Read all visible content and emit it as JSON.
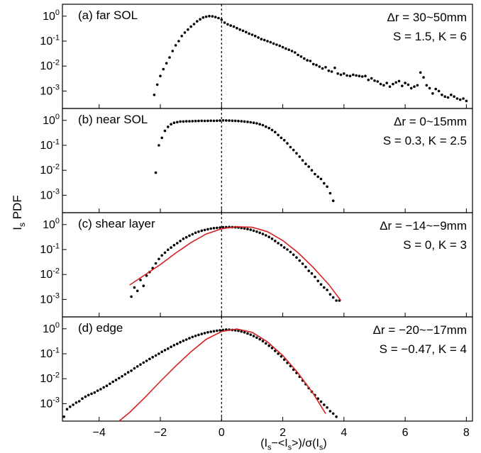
{
  "figure": {
    "xlabel": "(I_s−<I_s>)/σ(I_s)",
    "ylabel": "I_s PDF"
  },
  "chart_data": {
    "type": "scatter",
    "x_axis": {
      "range": [
        -5.2,
        8.2
      ],
      "ticks": [
        -4,
        -2,
        0,
        2,
        4,
        6,
        8
      ],
      "tick_labels": [
        "−4",
        "−2",
        "0",
        "2",
        "4",
        "6",
        "8"
      ],
      "label": "(I_s−<I_s>)/σ(I_s)"
    },
    "y_axis": {
      "scale": "log",
      "range": [
        0.0002,
        3
      ],
      "ticks": [
        1,
        0.1,
        0.01,
        0.001
      ],
      "tick_labels": [
        "10^0",
        "10^-1",
        "10^-2",
        "10^-3"
      ],
      "label": "I_s PDF"
    },
    "reference_line": {
      "x": 0,
      "style": "dashed"
    },
    "panels": [
      {
        "label": "(a) far SOL",
        "annotation_lines": [
          "Δr = 30~50mm",
          "S = 1.5, K = 6"
        ],
        "series": [
          {
            "style": "points",
            "color": "#000000",
            "x": [
              -2.2,
              -2.1,
              -2.0,
              -1.9,
              -1.8,
              -1.7,
              -1.6,
              -1.5,
              -1.4,
              -1.3,
              -1.2,
              -1.1,
              -1.0,
              -0.9,
              -0.8,
              -0.7,
              -0.6,
              -0.5,
              -0.4,
              -0.3,
              -0.2,
              -0.1,
              0.0,
              0.1,
              0.2,
              0.3,
              0.4,
              0.5,
              0.6,
              0.7,
              0.8,
              0.9,
              1.0,
              1.1,
              1.2,
              1.3,
              1.4,
              1.5,
              1.6,
              1.7,
              1.8,
              1.9,
              2.0,
              2.1,
              2.2,
              2.3,
              2.4,
              2.5,
              2.6,
              2.7,
              2.8,
              2.9,
              3.0,
              3.1,
              3.2,
              3.3,
              3.4,
              3.5,
              3.6,
              3.7,
              3.8,
              3.9,
              4.0,
              4.1,
              4.2,
              4.3,
              4.4,
              4.5,
              4.6,
              4.7,
              4.8,
              4.9,
              5.0,
              5.1,
              5.2,
              5.3,
              5.4,
              5.5,
              5.6,
              5.7,
              5.8,
              5.9,
              6.0,
              6.1,
              6.2,
              6.3,
              6.4,
              6.5,
              6.6,
              6.7,
              6.8,
              6.9,
              7.0,
              7.1,
              7.2,
              7.3,
              7.4,
              7.5,
              7.6,
              7.7,
              7.8,
              7.9,
              8.0
            ],
            "y": [
              0.0007,
              0.0018,
              0.004,
              0.0075,
              0.013,
              0.022,
              0.04,
              0.068,
              0.1,
              0.16,
              0.22,
              0.29,
              0.38,
              0.48,
              0.62,
              0.75,
              0.88,
              0.95,
              1.0,
              0.98,
              0.92,
              0.84,
              0.72,
              0.55,
              0.47,
              0.42,
              0.38,
              0.33,
              0.29,
              0.26,
              0.23,
              0.2,
              0.18,
              0.16,
              0.14,
              0.12,
              0.11,
              0.1,
              0.09,
              0.08,
              0.072,
              0.065,
              0.057,
              0.05,
              0.045,
              0.04,
              0.035,
              0.028,
              0.024,
              0.02,
              0.017,
              0.016,
              0.012,
              0.011,
              0.0095,
              0.008,
              0.009,
              0.0065,
              0.006,
              0.0085,
              0.005,
              0.0045,
              0.005,
              0.0042,
              0.004,
              0.0045,
              0.0042,
              0.004,
              0.0038,
              0.004,
              0.0028,
              0.0032,
              0.0026,
              0.0024,
              0.0019,
              0.0017,
              0.0021,
              0.0015,
              0.0019,
              0.0022,
              0.0025,
              0.0016,
              0.0021,
              0.0018,
              0.0013,
              0.0015,
              0.0017,
              0.0055,
              0.0035,
              0.0017,
              0.0013,
              0.0008,
              0.0012,
              0.001,
              0.0007,
              0.0006,
              0.00055,
              0.0007,
              0.0006,
              0.0005,
              0.00045,
              0.0005,
              0.0004
            ]
          }
        ]
      },
      {
        "label": "(b) near SOL",
        "annotation_lines": [
          "Δr = 0~15mm",
          "S = 0.3, K = 2.5"
        ],
        "series": [
          {
            "style": "points",
            "color": "#000000",
            "x": [
              -2.15,
              -2.05,
              -1.95,
              -1.85,
              -1.75,
              -1.65,
              -1.55,
              -1.45,
              -1.35,
              -1.25,
              -1.15,
              -1.05,
              -0.95,
              -0.85,
              -0.75,
              -0.65,
              -0.55,
              -0.45,
              -0.35,
              -0.25,
              -0.15,
              -0.05,
              0.05,
              0.15,
              0.25,
              0.35,
              0.45,
              0.55,
              0.65,
              0.75,
              0.85,
              0.95,
              1.05,
              1.15,
              1.25,
              1.35,
              1.45,
              1.55,
              1.65,
              1.75,
              1.85,
              1.95,
              2.05,
              2.15,
              2.25,
              2.35,
              2.45,
              2.55,
              2.65,
              2.75,
              2.85,
              2.95,
              3.05,
              3.15,
              3.25,
              3.35,
              3.45,
              3.55,
              3.65
            ],
            "y": [
              0.008,
              0.1,
              0.2,
              0.38,
              0.55,
              0.7,
              0.8,
              0.85,
              0.9,
              0.9,
              0.92,
              0.92,
              0.93,
              0.94,
              0.95,
              0.96,
              0.95,
              0.96,
              0.97,
              0.96,
              0.97,
              0.98,
              1.0,
              0.99,
              0.98,
              0.97,
              0.96,
              0.94,
              0.92,
              0.9,
              0.87,
              0.84,
              0.8,
              0.76,
              0.7,
              0.64,
              0.56,
              0.49,
              0.41,
              0.34,
              0.26,
              0.2,
              0.16,
              0.12,
              0.085,
              0.065,
              0.048,
              0.035,
              0.025,
              0.018,
              0.014,
              0.01,
              0.007,
              0.0055,
              0.0045,
              0.003,
              0.0022,
              0.0012,
              0.0006
            ]
          }
        ]
      },
      {
        "label": "(c) shear layer",
        "annotation_lines": [
          "Δr = −14~−9mm",
          "S = 0, K = 3"
        ],
        "series": [
          {
            "style": "points",
            "color": "#000000",
            "x": [
              -2.95,
              -2.85,
              -2.75,
              -2.65,
              -2.55,
              -2.45,
              -2.35,
              -2.25,
              -2.15,
              -2.05,
              -1.95,
              -1.85,
              -1.75,
              -1.65,
              -1.55,
              -1.45,
              -1.35,
              -1.25,
              -1.15,
              -1.05,
              -0.95,
              -0.85,
              -0.75,
              -0.65,
              -0.55,
              -0.45,
              -0.35,
              -0.25,
              -0.15,
              -0.05,
              0.05,
              0.15,
              0.25,
              0.35,
              0.45,
              0.55,
              0.65,
              0.75,
              0.85,
              0.95,
              1.05,
              1.15,
              1.25,
              1.35,
              1.45,
              1.55,
              1.65,
              1.75,
              1.85,
              1.95,
              2.05,
              2.15,
              2.25,
              2.35,
              2.45,
              2.55,
              2.65,
              2.75,
              2.85,
              2.95,
              3.05,
              3.15,
              3.25,
              3.35,
              3.45,
              3.55,
              3.65,
              3.75,
              3.85
            ],
            "y": [
              0.0013,
              0.003,
              0.0022,
              0.006,
              0.0035,
              0.009,
              0.0125,
              0.018,
              0.028,
              0.042,
              0.058,
              0.075,
              0.098,
              0.12,
              0.15,
              0.18,
              0.22,
              0.27,
              0.31,
              0.36,
              0.41,
              0.47,
              0.52,
              0.57,
              0.61,
              0.65,
              0.69,
              0.72,
              0.74,
              0.76,
              0.78,
              0.79,
              0.8,
              0.79,
              0.78,
              0.76,
              0.73,
              0.7,
              0.66,
              0.62,
              0.57,
              0.52,
              0.47,
              0.42,
              0.37,
              0.32,
              0.27,
              0.22,
              0.18,
              0.15,
              0.12,
              0.1,
              0.08,
              0.062,
              0.048,
              0.036,
              0.027,
              0.02,
              0.014,
              0.011,
              0.008,
              0.0055,
              0.004,
              0.003,
              0.0024,
              0.0016,
              0.0012,
              0.0009,
              0.0009
            ]
          },
          {
            "style": "line",
            "color": "#d62222",
            "x": [
              -3.0,
              -2.5,
              -2.0,
              -1.5,
              -1.0,
              -0.5,
              0.0,
              0.5,
              1.0,
              1.5,
              2.0,
              2.5,
              3.0,
              3.5,
              3.9
            ],
            "y": [
              0.0038,
              0.0098,
              0.025,
              0.072,
              0.19,
              0.42,
              0.68,
              0.82,
              0.78,
              0.52,
              0.23,
              0.075,
              0.019,
              0.004,
              0.0009
            ]
          }
        ]
      },
      {
        "label": "(d) edge",
        "annotation_lines": [
          "Δr = −20~−17mm",
          "S = −0.47, K = 4"
        ],
        "series": [
          {
            "style": "points",
            "color": "#000000",
            "x": [
              -5.15,
              -5.05,
              -4.95,
              -4.85,
              -4.75,
              -4.65,
              -4.55,
              -4.45,
              -4.35,
              -4.25,
              -4.15,
              -4.05,
              -3.95,
              -3.85,
              -3.75,
              -3.65,
              -3.55,
              -3.45,
              -3.35,
              -3.25,
              -3.15,
              -3.05,
              -2.95,
              -2.85,
              -2.75,
              -2.65,
              -2.55,
              -2.45,
              -2.35,
              -2.25,
              -2.15,
              -2.05,
              -1.95,
              -1.85,
              -1.75,
              -1.65,
              -1.55,
              -1.45,
              -1.35,
              -1.25,
              -1.15,
              -1.05,
              -0.95,
              -0.85,
              -0.75,
              -0.65,
              -0.55,
              -0.45,
              -0.35,
              -0.25,
              -0.15,
              -0.05,
              0.05,
              0.15,
              0.25,
              0.35,
              0.45,
              0.55,
              0.65,
              0.75,
              0.85,
              0.95,
              1.05,
              1.15,
              1.25,
              1.35,
              1.45,
              1.55,
              1.65,
              1.75,
              1.85,
              1.95,
              2.05,
              2.15,
              2.25,
              2.35,
              2.45,
              2.55,
              2.65,
              2.75,
              2.85,
              2.95,
              3.05,
              3.15,
              3.25,
              3.35,
              3.45,
              3.55,
              3.65,
              3.75
            ],
            "y": [
              0.0003,
              0.0006,
              0.00075,
              0.0009,
              0.0011,
              0.00125,
              0.0016,
              0.0019,
              0.0022,
              0.0025,
              0.0028,
              0.0033,
              0.0038,
              0.0045,
              0.0052,
              0.0063,
              0.0075,
              0.0088,
              0.0105,
              0.0125,
              0.015,
              0.018,
              0.021,
              0.026,
              0.031,
              0.037,
              0.044,
              0.052,
              0.062,
              0.073,
              0.085,
              0.1,
              0.12,
              0.14,
              0.16,
              0.19,
              0.22,
              0.25,
              0.29,
              0.33,
              0.37,
              0.42,
              0.47,
              0.52,
              0.57,
              0.62,
              0.67,
              0.72,
              0.76,
              0.8,
              0.84,
              0.87,
              0.9,
              0.93,
              0.92,
              0.9,
              0.87,
              0.83,
              0.78,
              0.72,
              0.65,
              0.58,
              0.51,
              0.44,
              0.38,
              0.32,
              0.26,
              0.21,
              0.17,
              0.13,
              0.1,
              0.078,
              0.058,
              0.043,
              0.032,
              0.023,
              0.017,
              0.012,
              0.0085,
              0.006,
              0.0042,
              0.003,
              0.0022,
              0.0016,
              0.0012,
              0.0009,
              0.0007,
              0.0005,
              0.0004,
              0.0003
            ]
          },
          {
            "style": "line",
            "color": "#d62222",
            "x": [
              -3.35,
              -3.0,
              -2.5,
              -2.0,
              -1.5,
              -1.0,
              -0.5,
              0.0,
              0.5,
              1.0,
              1.5,
              2.0,
              2.5,
              3.0,
              3.4
            ],
            "y": [
              0.0002,
              0.00045,
              0.0018,
              0.0078,
              0.032,
              0.12,
              0.38,
              0.78,
              0.98,
              0.72,
              0.3,
              0.085,
              0.017,
              0.0025,
              0.0004
            ]
          }
        ]
      }
    ]
  }
}
